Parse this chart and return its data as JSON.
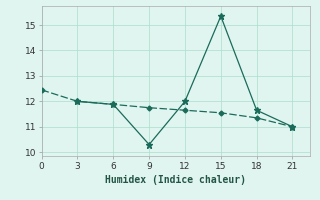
{
  "line1_x": [
    0,
    3,
    6,
    9,
    12,
    15,
    18,
    21
  ],
  "line1_y": [
    12.45,
    12.0,
    11.88,
    11.75,
    11.65,
    11.55,
    11.35,
    11.0
  ],
  "line2_x": [
    3,
    6,
    9,
    12,
    15,
    18,
    21
  ],
  "line2_y": [
    12.0,
    11.88,
    10.3,
    12.0,
    15.35,
    11.65,
    11.0
  ],
  "color": "#1a6b5a",
  "background": "#e0f5f0",
  "xlabel": "Humidex (Indice chaleur)",
  "xticks": [
    0,
    3,
    6,
    9,
    12,
    15,
    18,
    21
  ],
  "yticks": [
    10,
    11,
    12,
    13,
    14,
    15
  ],
  "xlim": [
    0,
    22.5
  ],
  "ylim": [
    9.85,
    15.75
  ]
}
